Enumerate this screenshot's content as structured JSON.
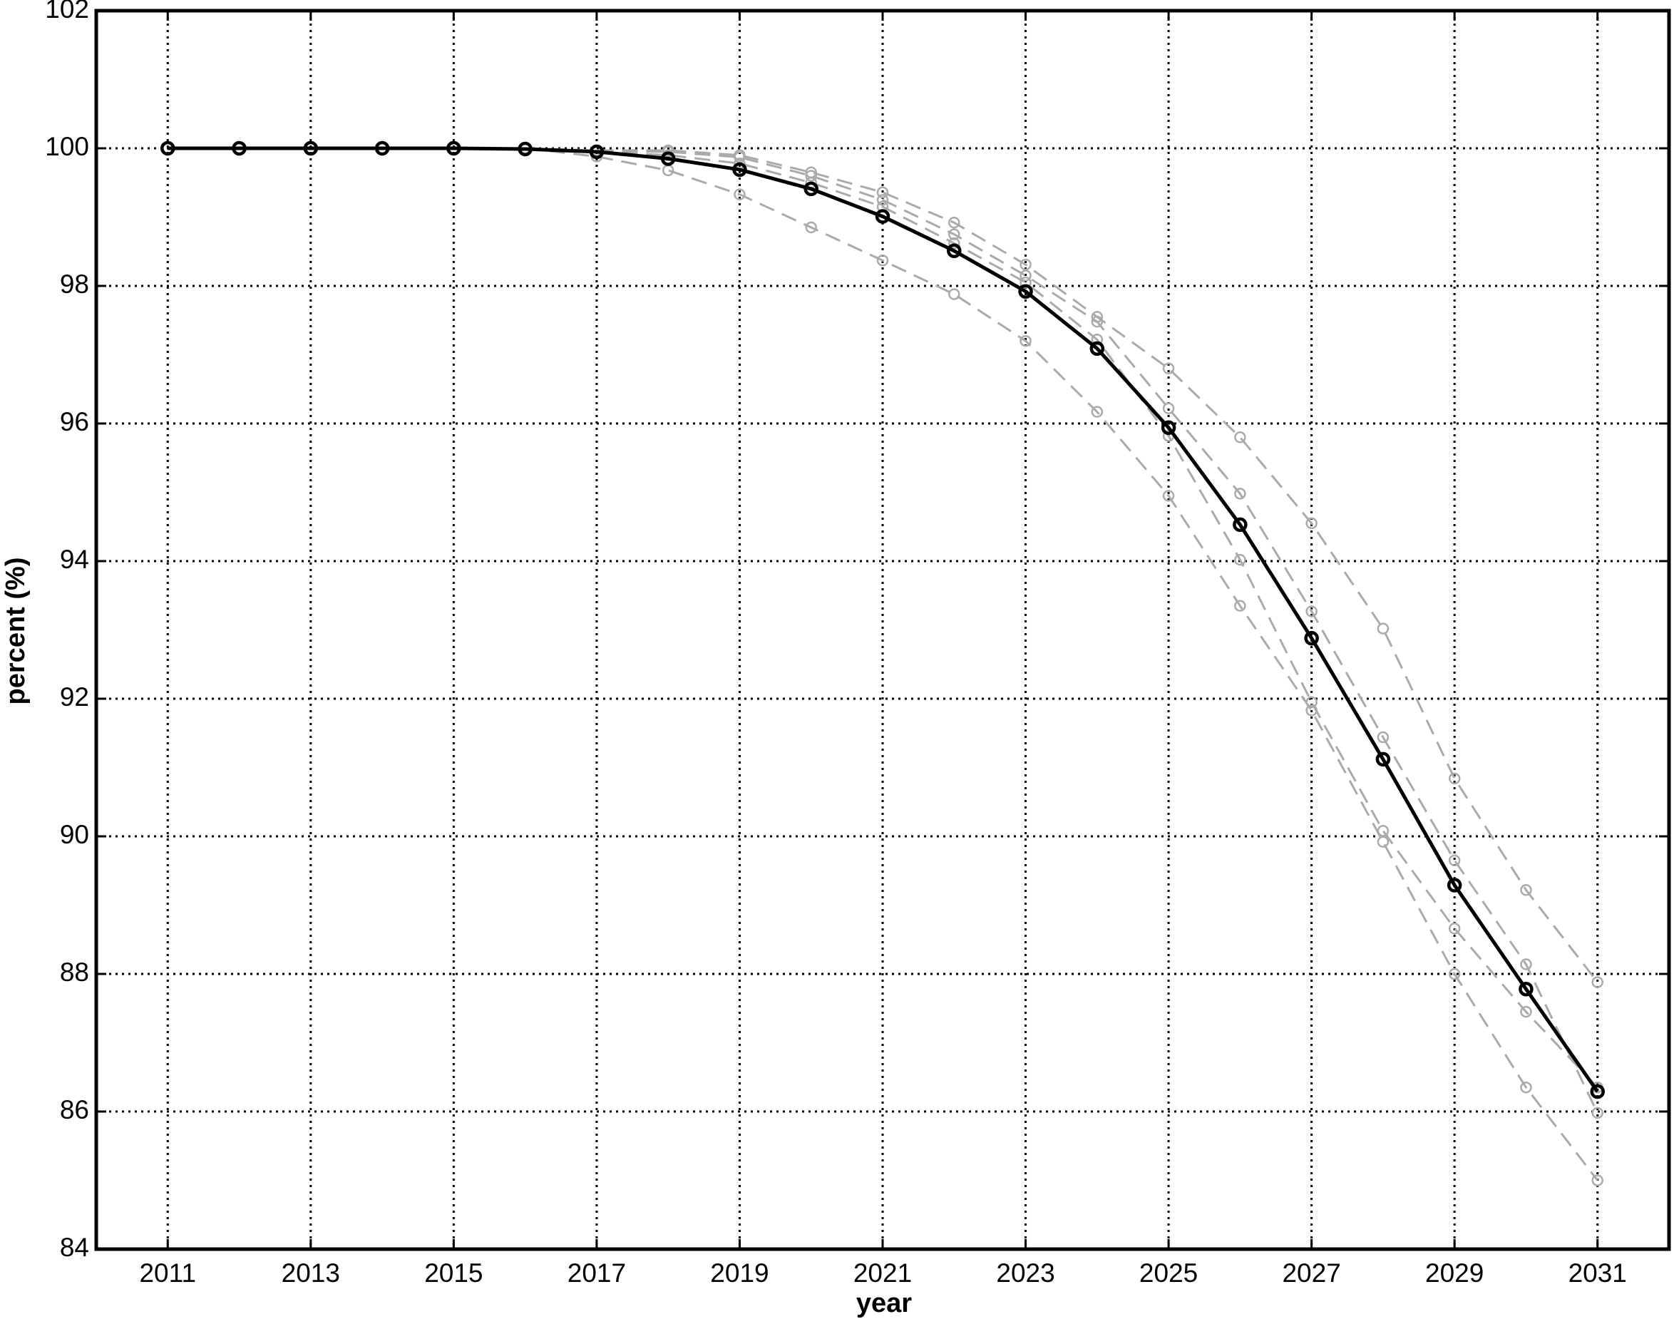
{
  "chart_data": {
    "type": "line",
    "xlabel": "year",
    "ylabel": "percent (%)",
    "x": [
      2011,
      2012,
      2013,
      2014,
      2015,
      2016,
      2017,
      2018,
      2019,
      2020,
      2021,
      2022,
      2023,
      2024,
      2025,
      2026,
      2027,
      2028,
      2029,
      2030,
      2031
    ],
    "series": [
      {
        "color": "#aaaaaa",
        "dashed": true,
        "values": [
          null,
          null,
          null,
          null,
          null,
          100,
          99.97,
          99.97,
          99.9,
          99.65,
          99.36,
          98.92,
          98.31,
          97.55,
          96.8,
          95.8,
          94.55,
          93.02,
          90.84,
          89.22,
          87.88
        ]
      },
      {
        "color": "#aaaaaa",
        "dashed": true,
        "values": [
          null,
          null,
          null,
          null,
          null,
          100,
          99.96,
          99.95,
          99.87,
          99.6,
          99.25,
          98.75,
          98.15,
          97.48,
          96.22,
          94.98,
          93.27,
          91.44,
          89.65,
          88.14,
          85.98
        ]
      },
      {
        "color": "#aaaaaa",
        "dashed": true,
        "values": [
          null,
          null,
          null,
          null,
          null,
          100,
          99.95,
          99.9,
          99.78,
          99.5,
          99.15,
          98.62,
          98.05,
          97.22,
          95.82,
          94.02,
          91.95,
          90.08,
          88.66,
          87.45,
          86.35
        ]
      },
      {
        "color": "#aaaaaa",
        "dashed": true,
        "values": [
          null,
          null,
          null,
          null,
          null,
          100,
          99.88,
          99.68,
          99.33,
          98.85,
          98.37,
          97.88,
          97.2,
          96.17,
          94.95,
          93.35,
          91.83,
          89.92,
          88.0,
          86.35,
          85.0
        ]
      },
      {
        "color": "#000000",
        "dashed": false,
        "values": [
          100,
          100,
          100,
          100,
          100,
          99.99,
          99.95,
          99.85,
          99.69,
          99.41,
          99.01,
          98.51,
          97.92,
          97.09,
          95.94,
          94.53,
          92.88,
          91.12,
          89.29,
          87.78,
          86.29
        ]
      }
    ],
    "xlim": [
      2010,
      2032
    ],
    "xticks": [
      2011,
      2013,
      2015,
      2017,
      2019,
      2021,
      2023,
      2025,
      2027,
      2029,
      2031
    ],
    "ylim": [
      84,
      102
    ],
    "yticks": [
      84,
      86,
      88,
      90,
      92,
      94,
      96,
      98,
      100,
      102
    ],
    "grid": true
  }
}
